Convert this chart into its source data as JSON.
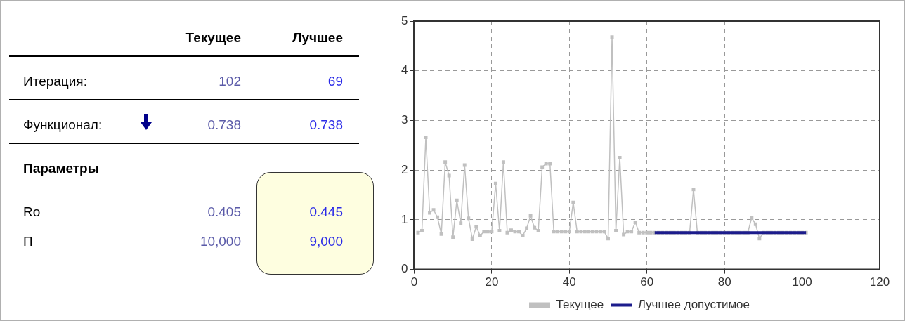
{
  "chart_data": [
    {
      "type": "other",
      "categories": [
        "Текущее",
        "Лучшее"
      ],
      "y_categories": [
        "Итерация:",
        "Функционал:",
        "Ro",
        "П"
      ],
      "cell_labels": [
        [
          "102",
          "69"
        ],
        [
          "0.738",
          "0.738"
        ],
        [
          "0.405",
          "0.445"
        ],
        [
          "10,000",
          "9,000"
        ]
      ],
      "annotations": [
        "Параметры"
      ]
    },
    {
      "type": "line",
      "xlim": [
        0,
        120
      ],
      "xticks": [
        0,
        20,
        40,
        60,
        80,
        100,
        120
      ],
      "ylim": [
        0,
        5
      ],
      "yticks": [
        0,
        1,
        2,
        3,
        4,
        5
      ],
      "grid": true,
      "legend": "bottom",
      "series": [
        {
          "name": "Текущее",
          "color": "#c0c0c0",
          "marker": "square",
          "x": [
            1,
            2,
            3,
            4,
            5,
            6,
            7,
            8,
            9,
            10,
            11,
            12,
            13,
            14,
            15,
            16,
            17,
            18,
            19,
            20,
            21,
            22,
            23,
            24,
            25,
            26,
            27,
            28,
            29,
            30,
            31,
            32,
            33,
            34,
            35,
            36,
            37,
            38,
            39,
            40,
            41,
            42,
            43,
            44,
            45,
            46,
            47,
            48,
            49,
            50,
            51,
            52,
            53,
            54,
            55,
            56,
            57,
            58,
            59,
            60,
            61,
            62,
            63,
            64,
            65,
            66,
            67,
            68,
            69,
            70,
            71,
            72,
            73,
            74,
            75,
            76,
            77,
            78,
            79,
            80,
            81,
            82,
            83,
            84,
            85,
            86,
            87,
            88,
            89,
            90,
            91,
            92,
            93,
            94,
            95,
            96,
            97,
            98,
            99,
            100,
            101
          ],
          "values": [
            0.74,
            0.78,
            2.66,
            1.14,
            1.2,
            1.05,
            0.71,
            2.16,
            1.89,
            0.65,
            1.39,
            0.93,
            2.1,
            1.03,
            0.61,
            0.86,
            0.68,
            0.76,
            0.76,
            0.76,
            1.73,
            0.78,
            2.16,
            0.74,
            0.79,
            0.76,
            0.76,
            0.68,
            0.83,
            1.08,
            0.84,
            0.78,
            2.06,
            2.13,
            2.13,
            0.76,
            0.76,
            0.76,
            0.76,
            0.76,
            1.35,
            0.76,
            0.76,
            0.76,
            0.76,
            0.76,
            0.76,
            0.76,
            0.76,
            0.62,
            4.68,
            0.78,
            2.25,
            0.7,
            0.76,
            0.76,
            0.95,
            0.74,
            0.74,
            0.74,
            0.74,
            0.74,
            0.74,
            0.74,
            0.74,
            0.74,
            0.74,
            0.74,
            0.74,
            0.74,
            0.74,
            1.61,
            0.74,
            0.74,
            0.74,
            0.74,
            0.74,
            0.74,
            0.74,
            0.74,
            0.74,
            0.74,
            0.74,
            0.74,
            0.74,
            0.74,
            1.04,
            0.91,
            0.62,
            0.74,
            0.74,
            0.74,
            0.74,
            0.74,
            0.74,
            0.74,
            0.74,
            0.74,
            0.74,
            0.74,
            0.74
          ]
        },
        {
          "name": "Лучшее допустимое",
          "color": "#1c1c8c",
          "marker": "none",
          "x": [
            62,
            101
          ],
          "values": [
            0.74,
            0.74
          ]
        }
      ]
    }
  ]
}
